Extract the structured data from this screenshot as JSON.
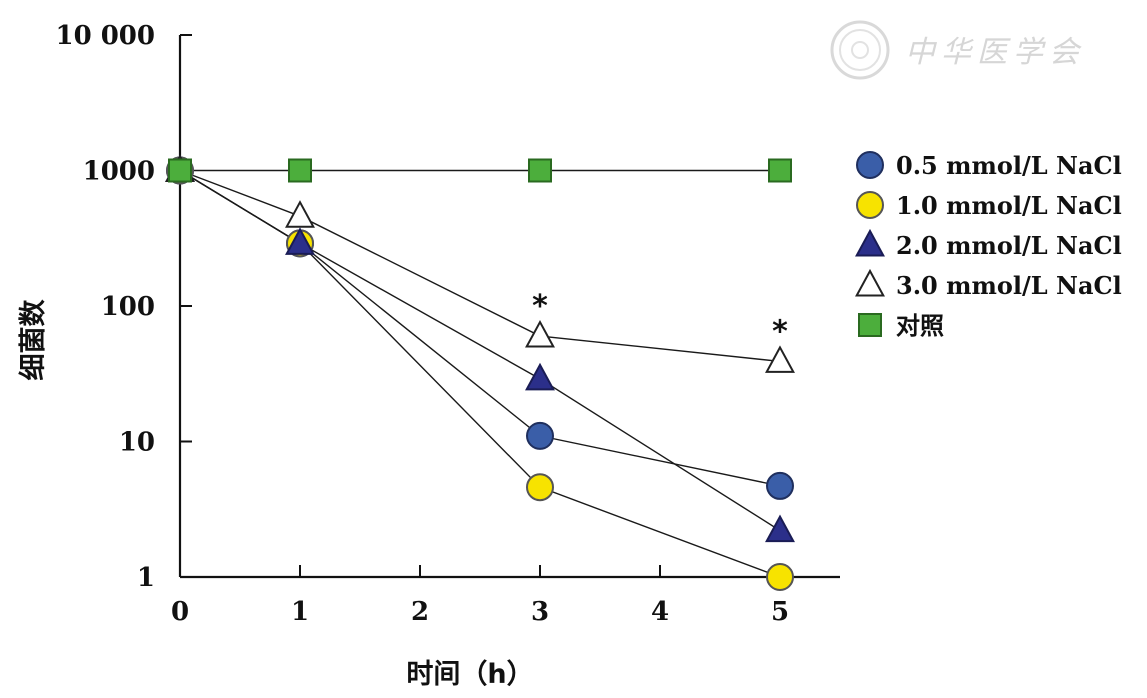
{
  "chart_data": {
    "type": "line",
    "x_axis": {
      "label": "时间（h）",
      "ticks": [
        0,
        1,
        2,
        3,
        4,
        5
      ],
      "range": [
        0,
        5.5
      ]
    },
    "y_axis": {
      "label": "细菌数",
      "scale": "log",
      "ticks": [
        1,
        10,
        100,
        1000,
        10000
      ],
      "tick_labels": [
        "1",
        "10",
        "100",
        "1000",
        "10 000"
      ],
      "range": [
        1,
        10000
      ]
    },
    "grid": false,
    "legend_position": "right",
    "series": [
      {
        "name": "0.5 mmol/L NaCl",
        "marker": "circle",
        "fill": "#3a5ea8",
        "stroke": "#1f2f5e",
        "x": [
          0,
          1,
          3,
          5
        ],
        "y": [
          1000,
          290,
          11,
          4.7
        ]
      },
      {
        "name": "1.0 mmol/L NaCl",
        "marker": "circle",
        "fill": "#f7e300",
        "stroke": "#555555",
        "x": [
          0,
          1,
          3,
          5
        ],
        "y": [
          1000,
          290,
          4.6,
          1.0
        ]
      },
      {
        "name": "2.0 mmol/L NaCl",
        "marker": "triangle",
        "fill": "#2b2f8a",
        "stroke": "#1a1c55",
        "x": [
          0,
          1,
          3,
          5
        ],
        "y": [
          1000,
          290,
          29,
          2.2
        ]
      },
      {
        "name": "3.0 mmol/L NaCl",
        "marker": "triangle",
        "fill": "#ffffff",
        "stroke": "#222222",
        "x": [
          0,
          1,
          3,
          5
        ],
        "y": [
          1000,
          460,
          60,
          39
        ]
      },
      {
        "name": "对照",
        "marker": "square",
        "fill": "#4cae3c",
        "stroke": "#2a6a20",
        "x": [
          0,
          1,
          3,
          5
        ],
        "y": [
          1000,
          1000,
          1000,
          1000
        ]
      }
    ],
    "annotations": [
      {
        "text": "*",
        "x": 3,
        "y": 60
      },
      {
        "text": "*",
        "x": 5,
        "y": 39
      }
    ]
  },
  "watermark": {
    "text": "中华医学会",
    "icon": "seal-logo-icon"
  }
}
